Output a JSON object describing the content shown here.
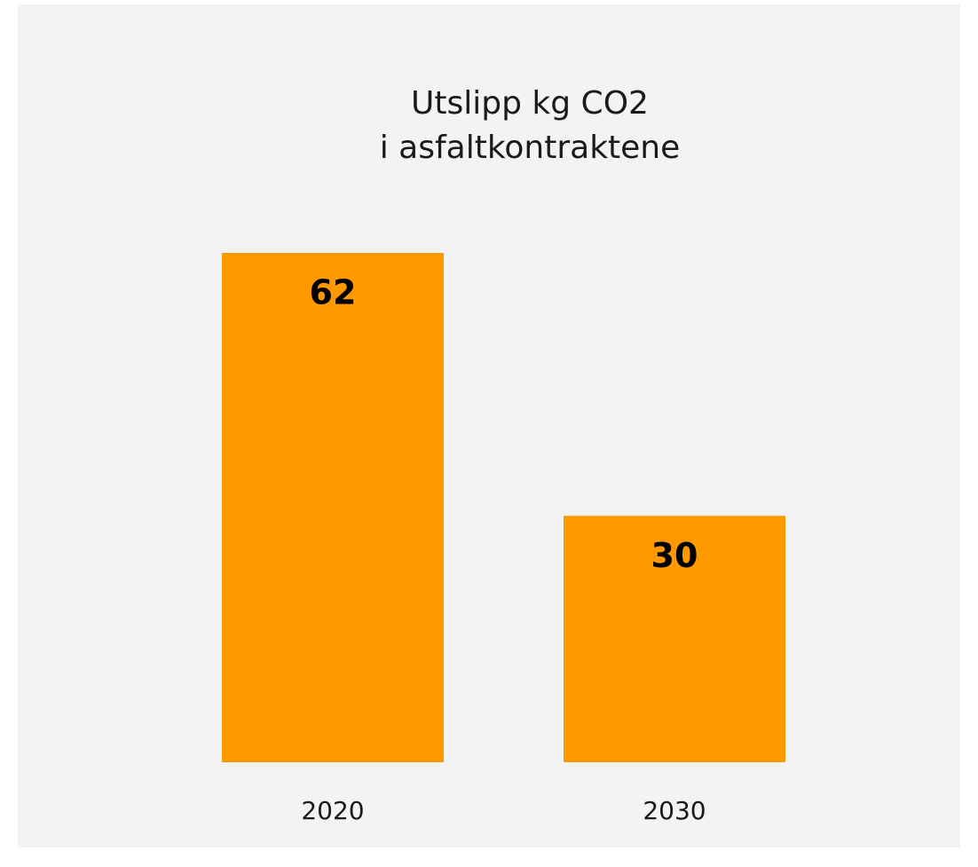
{
  "chart_data": {
    "type": "bar",
    "title": [
      "Utslipp kg CO2",
      "i asfaltkontraktene"
    ],
    "categories": [
      "2020",
      "2030"
    ],
    "values": [
      62,
      30
    ],
    "color": "#ff9900",
    "ylim": [
      0,
      62
    ]
  }
}
